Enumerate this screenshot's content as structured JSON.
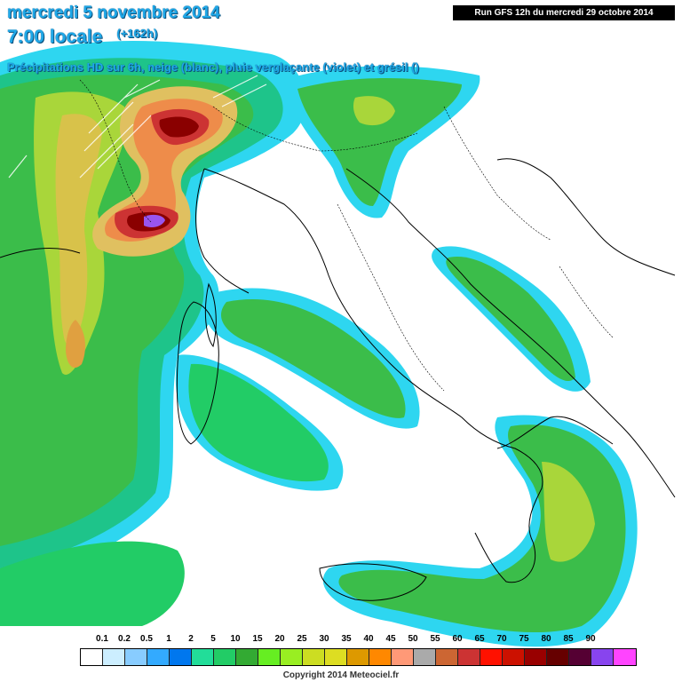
{
  "header": {
    "date_line": "mercredi 5 novembre 2014",
    "time_line": "7:00 locale",
    "lead_time": "(+162h)",
    "variable_line": "Précipitations HD sur 6h, neige (blanc), pluie verglaçante (violet) et grésil ()"
  },
  "run_label": "Run GFS 12h du mercredi 29 octobre 2014",
  "legend": {
    "tick_labels": [
      "0.1",
      "0.2",
      "0.5",
      "1",
      "2",
      "5",
      "10",
      "15",
      "20",
      "25",
      "30",
      "35",
      "40",
      "45",
      "50",
      "55",
      "60",
      "65",
      "70",
      "75",
      "80",
      "85",
      "90"
    ],
    "colors": [
      "#ffffff",
      "#cceeff",
      "#88ccff",
      "#33aaff",
      "#0077ee",
      "#22dd99",
      "#22cc66",
      "#33aa33",
      "#66ee22",
      "#99ee22",
      "#ccdd22",
      "#dddd22",
      "#dd9900",
      "#ff8800",
      "#ff9977",
      "#aaaaaa",
      "#cc6633",
      "#cc3333",
      "#ff1100",
      "#cc1100",
      "#990000",
      "#660000",
      "#550033",
      "#8844ee",
      "#ff44ff"
    ]
  },
  "copyright": "Copyright 2014 Meteociel.fr"
}
